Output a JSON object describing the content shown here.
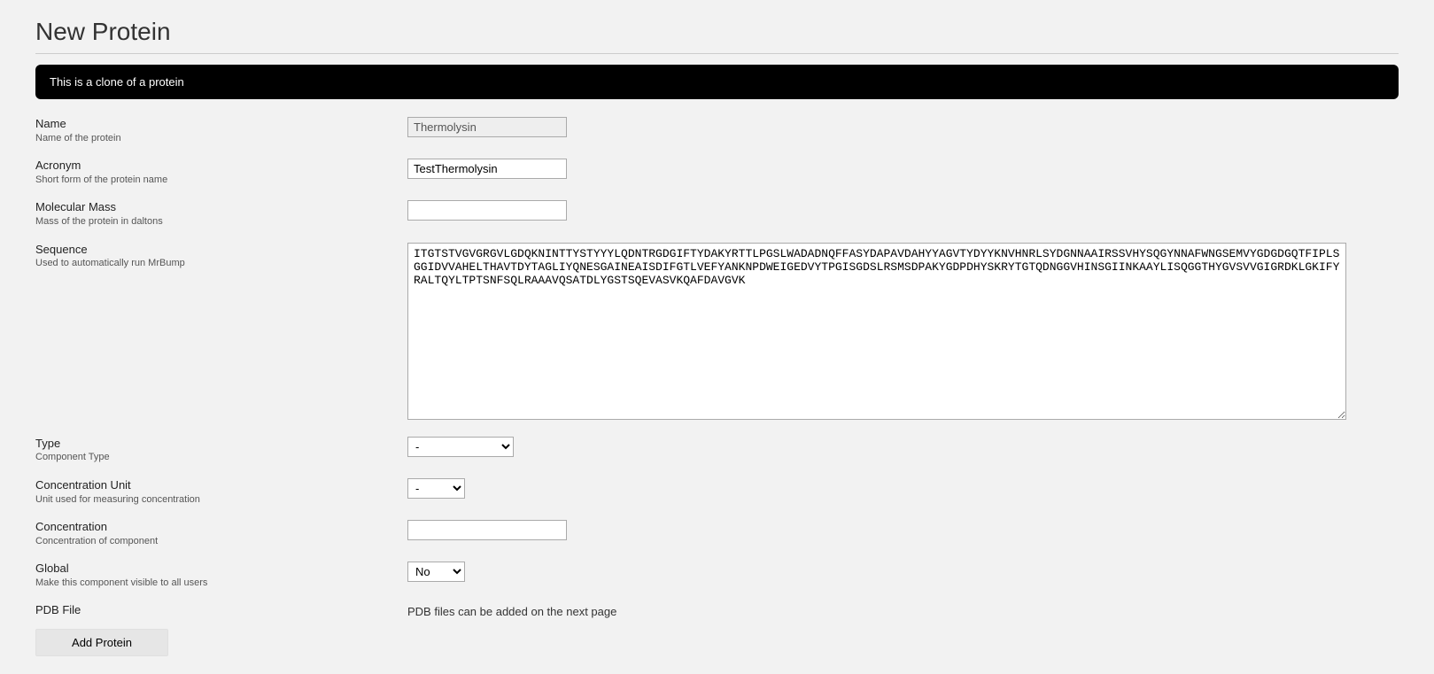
{
  "page": {
    "title": "New Protein",
    "banner": "This is a clone of a protein"
  },
  "fields": {
    "name": {
      "label": "Name",
      "hint": "Name of the protein",
      "value": "Thermolysin",
      "disabled": true
    },
    "acronym": {
      "label": "Acronym",
      "hint": "Short form of the protein name",
      "value": "TestThermolysin"
    },
    "molecular_mass": {
      "label": "Molecular Mass",
      "hint": "Mass of the protein in daltons",
      "value": ""
    },
    "sequence": {
      "label": "Sequence",
      "hint": "Used to automatically run MrBump",
      "value": "ITGTSTVGVGRGVLGDQKNINTTYSTYYYLQDNTRGDGIFTYDAKYRTTLPGSLWADADNQFFASYDAPAVDAHYYAGVTYDYYKNVHNRLSYDGNNAAIRSSVHYSQGYNNAFWNGSEMVYGDGDGQTFIPLSGGIDVVAHELTHAVTDYTAGLIYQNESGAINEAISDIFGTLVEFYANKNPDWEIGEDVYTPGISGDSLRSMSDPAKYGDPDHYSKRYTGTQDNGGVHINSGIINKAAYLISQGGTHYGVSVVGIGRDKLGKIFYRALTQYLTPTSNFSQLRAAAVQSATDLYGSTSQEVASVKQAFDAVGVK"
    },
    "type": {
      "label": "Type",
      "hint": "Component Type",
      "selected": "-"
    },
    "concentration_unit": {
      "label": "Concentration Unit",
      "hint": "Unit used for measuring concentration",
      "selected": "-"
    },
    "concentration": {
      "label": "Concentration",
      "hint": "Concentration of component",
      "value": ""
    },
    "global": {
      "label": "Global",
      "hint": "Make this component visible to all users",
      "selected": "No"
    },
    "pdb_file": {
      "label": "PDB File",
      "text": "PDB files can be added on the next page"
    }
  },
  "actions": {
    "submit": "Add Protein"
  },
  "colors": {
    "background": "#f2f2f2",
    "banner_bg": "#000000",
    "banner_text": "#ffffff",
    "border": "#aaaaaa",
    "button_bg": "#e6e6e6"
  }
}
